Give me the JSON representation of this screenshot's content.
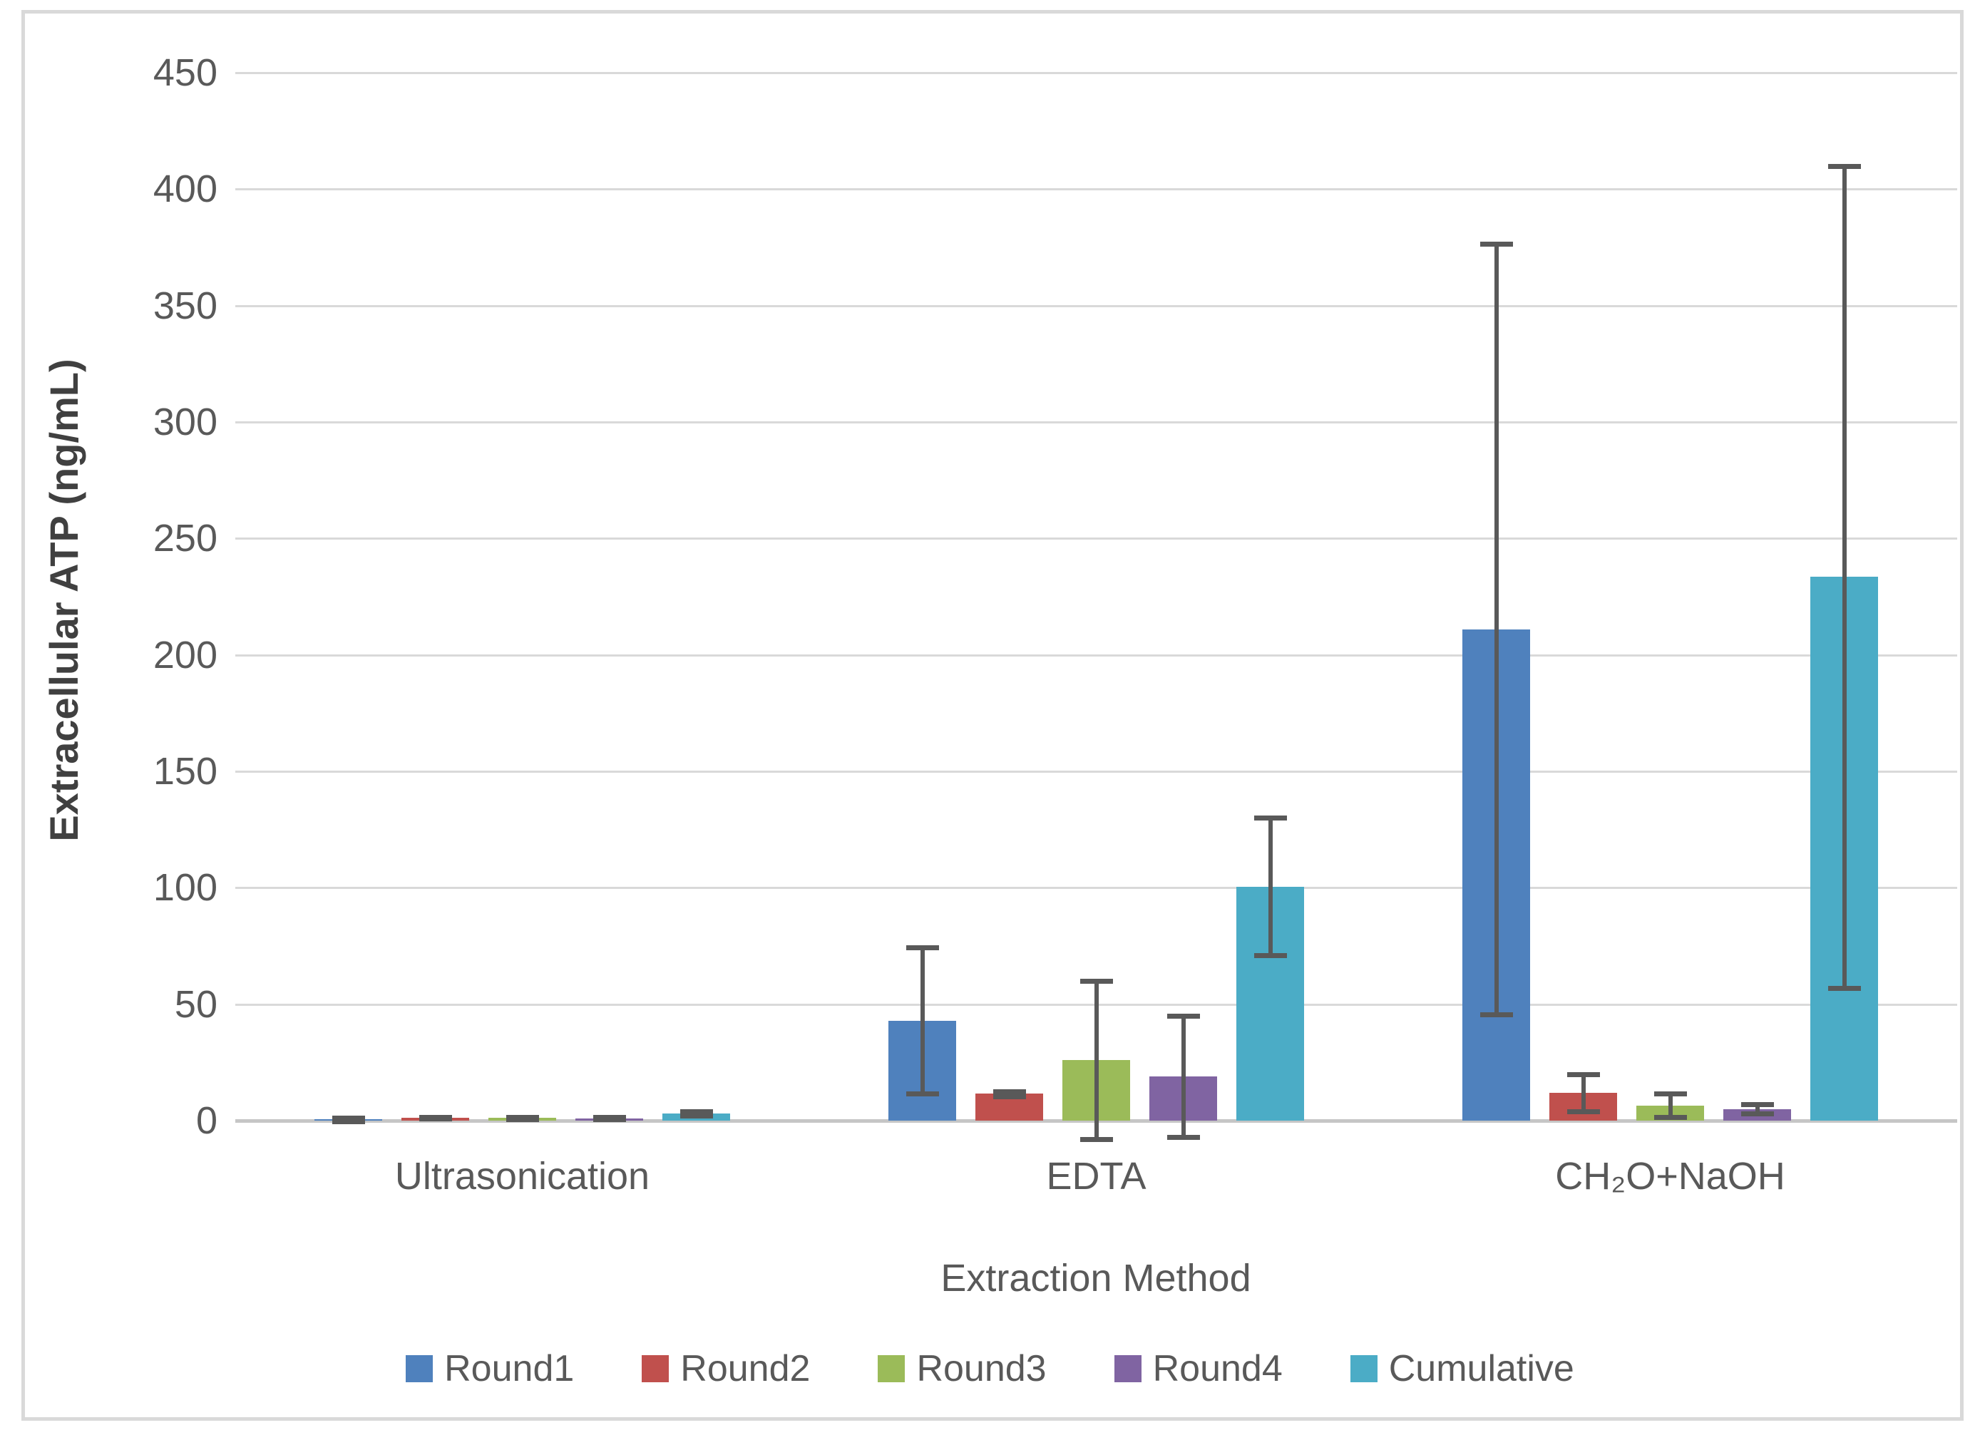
{
  "chart_data": {
    "type": "bar",
    "title": "",
    "xlabel": "Extraction Method",
    "ylabel": "Extracellular ATP (ng/mL)",
    "categories": [
      "Ultrasonication",
      "EDTA",
      "CH₂O+NaOH"
    ],
    "series": [
      {
        "name": "Round1",
        "color": "#4F81BD",
        "values": [
          0.5,
          43,
          211
        ],
        "errors": [
          0.8,
          31.5,
          165.5
        ]
      },
      {
        "name": "Round2",
        "color": "#C0504D",
        "values": [
          1.2,
          11.5,
          12
        ],
        "errors": [
          0.4,
          1,
          8
        ]
      },
      {
        "name": "Round3",
        "color": "#9BBB59",
        "values": [
          1.1,
          26,
          6.5
        ],
        "errors": [
          0.5,
          34,
          5
        ]
      },
      {
        "name": "Round4",
        "color": "#8064A2",
        "values": [
          1.0,
          19,
          5
        ],
        "errors": [
          0.4,
          26,
          2
        ]
      },
      {
        "name": "Cumulative",
        "color": "#4BACC6",
        "values": [
          3,
          100.5,
          233.5
        ],
        "errors": [
          1,
          29.5,
          176.5
        ]
      }
    ],
    "ylim": [
      0,
      450
    ],
    "ytick_step": 50,
    "yticks": [
      0,
      50,
      100,
      150,
      200,
      250,
      300,
      350,
      400,
      450
    ],
    "grid": true,
    "error_bars": true,
    "legend_position": "bottom",
    "error_bar_color": "#595959"
  }
}
